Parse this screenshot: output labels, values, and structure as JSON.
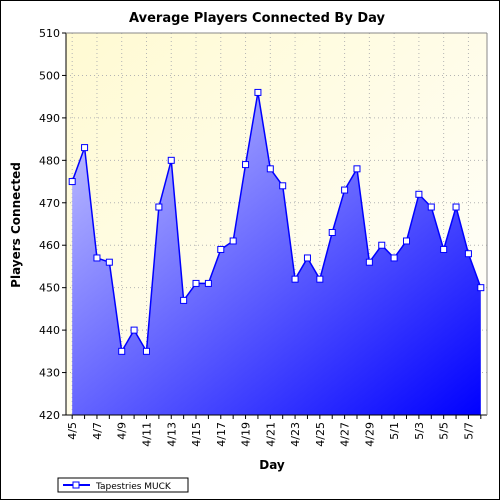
{
  "chart_data": {
    "type": "area",
    "title": "Average Players Connected By Day",
    "xlabel": "Day",
    "ylabel": "Players Connected",
    "ylim": [
      420,
      510
    ],
    "yticks": [
      420,
      430,
      440,
      450,
      460,
      470,
      480,
      490,
      500,
      510
    ],
    "grid": true,
    "legend_position": "bottom-left",
    "x_tick_labels": [
      "4/5",
      "4/7",
      "4/9",
      "4/11",
      "4/13",
      "4/15",
      "4/17",
      "4/19",
      "4/21",
      "4/23",
      "4/25",
      "4/27",
      "4/29",
      "5/1",
      "5/3",
      "5/5",
      "5/7"
    ],
    "x": [
      "4/5",
      "4/6",
      "4/7",
      "4/8",
      "4/9",
      "4/10",
      "4/11",
      "4/12",
      "4/13",
      "4/14",
      "4/15",
      "4/16",
      "4/17",
      "4/18",
      "4/19",
      "4/20",
      "4/21",
      "4/22",
      "4/23",
      "4/24",
      "4/25",
      "4/26",
      "4/27",
      "4/28",
      "4/29",
      "4/30",
      "5/1",
      "5/2",
      "5/3",
      "5/4",
      "5/5",
      "5/6",
      "5/7",
      "5/8"
    ],
    "series": [
      {
        "name": "Tapestries MUCK",
        "values": [
          475,
          483,
          457,
          456,
          435,
          440,
          435,
          469,
          480,
          447,
          451,
          451,
          459,
          461,
          479,
          496,
          478,
          474,
          452,
          457,
          452,
          463,
          473,
          478,
          456,
          460,
          457,
          461,
          472,
          469,
          459,
          469,
          458,
          450
        ]
      }
    ],
    "colors": {
      "line": "#0000ff",
      "fill_top": "#c8c8ff",
      "fill_bottom": "#0000ff",
      "plot_bg_top": "#fffad2",
      "plot_bg_bottom": "#ffffff",
      "grid": "#b4b4b4"
    }
  }
}
